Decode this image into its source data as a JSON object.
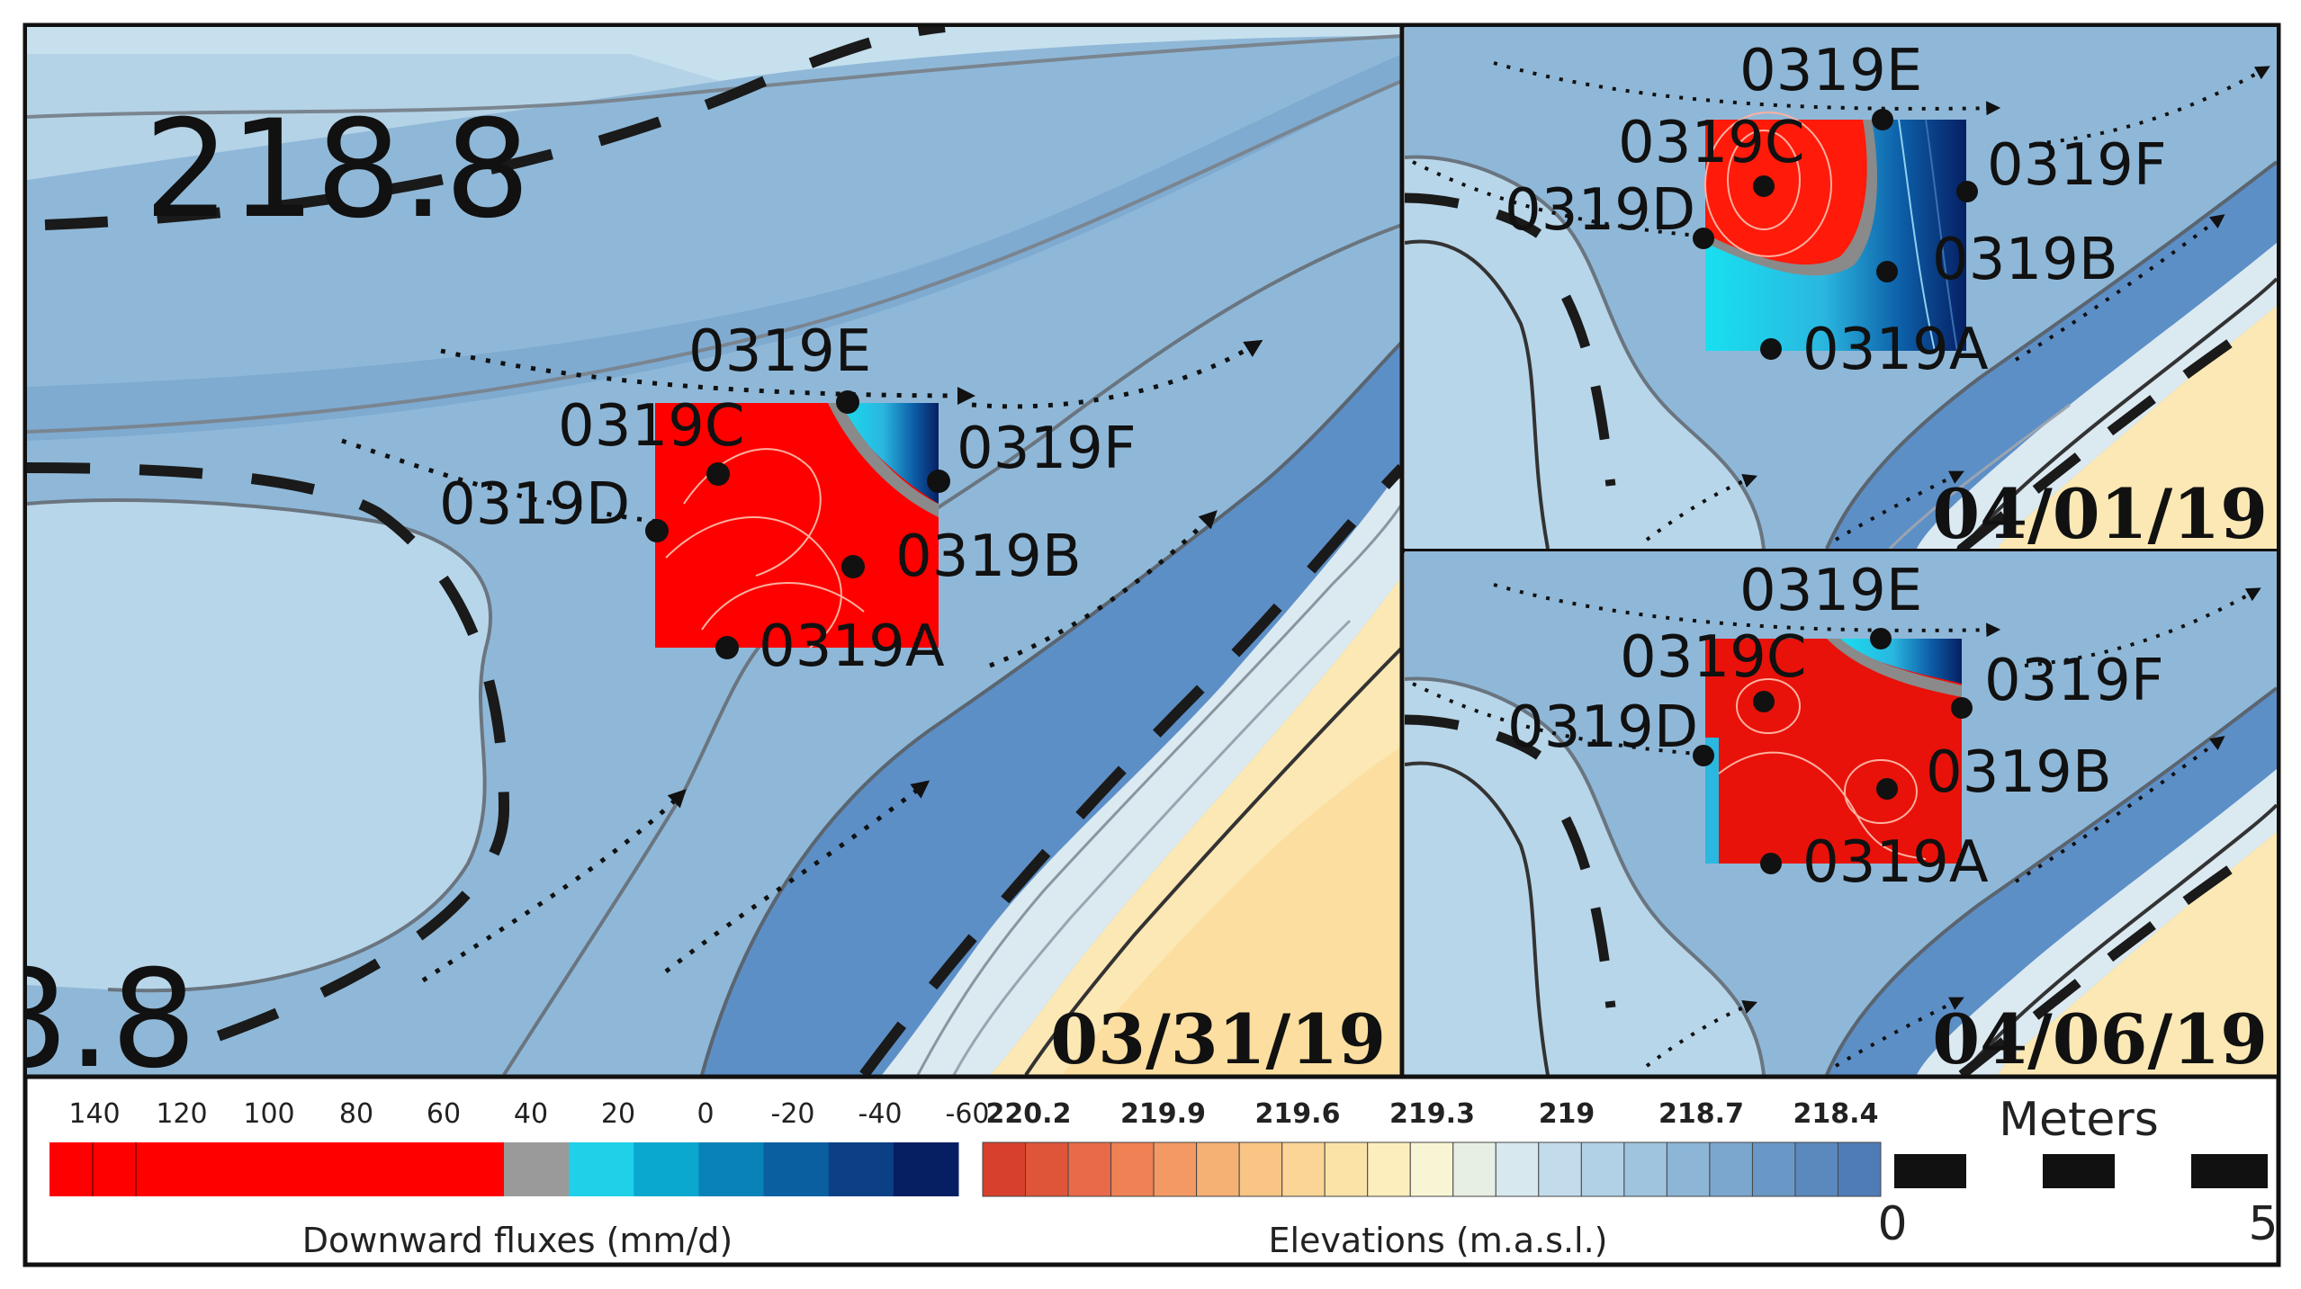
{
  "map": {
    "contour_label": "218.8",
    "contour_label_partial": "8.8",
    "panels": [
      {
        "date": "03/31/19",
        "wells": [
          {
            "id": "0319E"
          },
          {
            "id": "0319C"
          },
          {
            "id": "0319F"
          },
          {
            "id": "0319D"
          },
          {
            "id": "0319B"
          },
          {
            "id": "0319A"
          }
        ],
        "flux_state": "downward"
      },
      {
        "date": "04/01/19",
        "wells": [
          {
            "id": "0319E"
          },
          {
            "id": "0319C"
          },
          {
            "id": "0319F"
          },
          {
            "id": "0319D"
          },
          {
            "id": "0319B"
          },
          {
            "id": "0319A"
          }
        ],
        "flux_state": "mixed"
      },
      {
        "date": "04/06/19",
        "wells": [
          {
            "id": "0319E"
          },
          {
            "id": "0319C"
          },
          {
            "id": "0319F"
          },
          {
            "id": "0319D"
          },
          {
            "id": "0319B"
          },
          {
            "id": "0319A"
          }
        ],
        "flux_state": "downward"
      }
    ]
  },
  "legend": {
    "flux": {
      "title": "Downward fluxes (mm/d)",
      "ticks": [
        "140",
        "120",
        "100",
        "80",
        "60",
        "40",
        "20",
        "0",
        "-20",
        "-40",
        "-60"
      ],
      "colors": [
        "#ff0000",
        "#ff0000",
        "#ff0000",
        "#ff0000",
        "#ff0000",
        "#ff0000",
        "#ff0000",
        "#9a9a9a",
        "#1fd0e8",
        "#0aa7cf",
        "#0882b8",
        "#0a5fa0",
        "#0b3f86",
        "#061f63"
      ]
    },
    "elevation": {
      "title": "Elevations (m.a.s.l.)",
      "ticks": [
        "220.2",
        "219.9",
        "219.6",
        "219.3",
        "219",
        "218.7",
        "218.4"
      ],
      "colors": [
        "#d7402c",
        "#df553a",
        "#e86a48",
        "#ef8154",
        "#f39a64",
        "#f5b074",
        "#f8c584",
        "#fad596",
        "#fbe3a8",
        "#fcefbd",
        "#f7f5d3",
        "#e7efe4",
        "#d7e8ef",
        "#c3dceb",
        "#b1d1e6",
        "#9ec4de",
        "#8cb5d6",
        "#7ba7cf",
        "#6a98c6",
        "#5b89be",
        "#4f7cb6"
      ]
    },
    "scale": {
      "title": "Meters",
      "min": "0",
      "max": "5"
    }
  }
}
